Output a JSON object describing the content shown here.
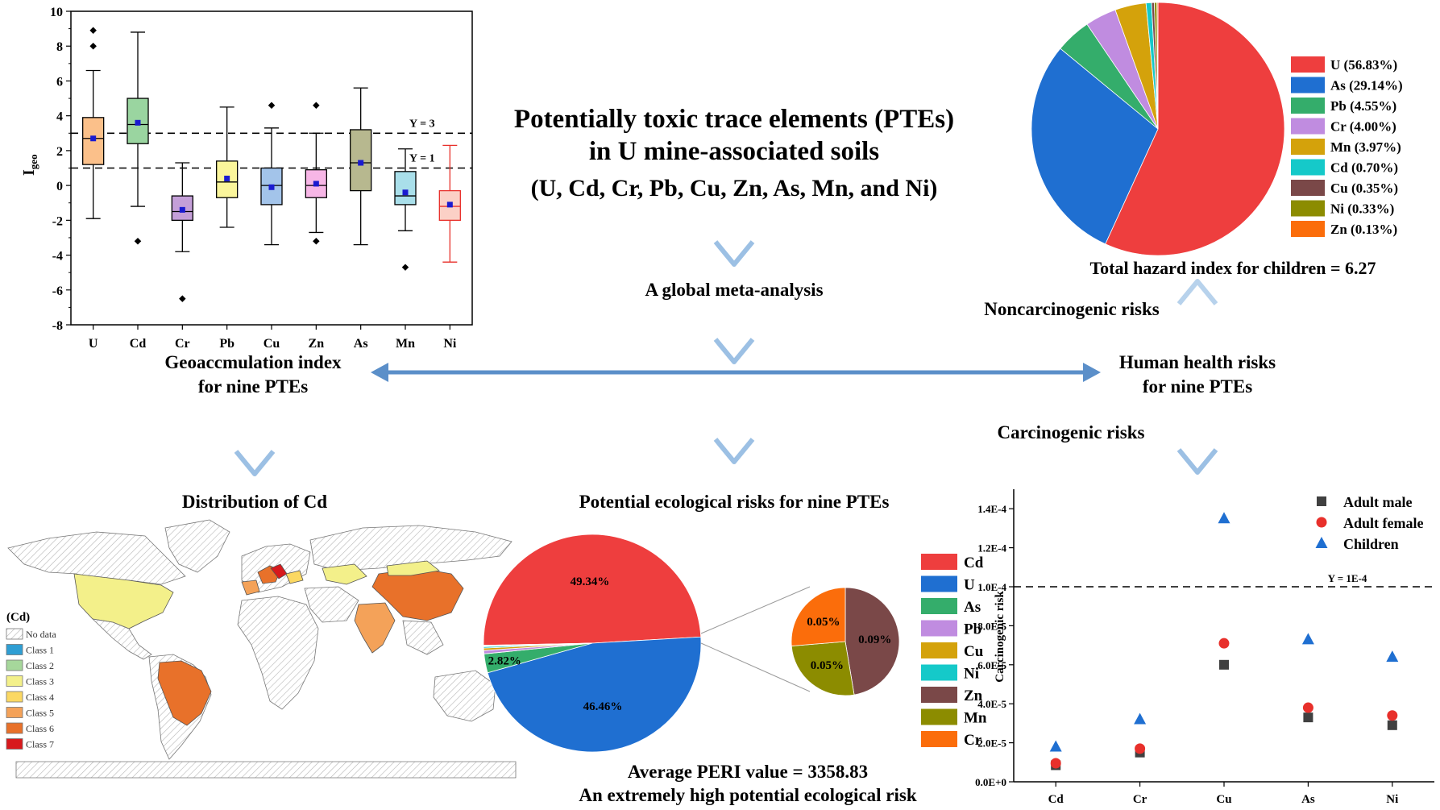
{
  "title": {
    "line1": "Potentially toxic trace elements (PTEs)",
    "line2": "in U mine-associated soils",
    "line3": "(U, Cd, Cr, Pb, Cu, Zn, As, Mn, and Ni)"
  },
  "flow": {
    "meta": "A global meta-analysis",
    "igeo_l1": "Geoaccmulation index",
    "igeo_l2": "for nine PTEs",
    "hhr_l1": "Human health risks",
    "hhr_l2": "for nine PTEs",
    "noncarc": "Noncarcinogenic risks",
    "carc": "Carcinogenic risks",
    "dist": "Distribution of Cd",
    "peri_title": "Potential ecological risks for nine PTEs",
    "peri_l1": "Average PERI value = 3358.83",
    "peri_l2": "An extremely high potential ecological risk",
    "thi": "Total hazard index for children = 6.27"
  },
  "colors": {
    "arrow_light": "#a9c8e6",
    "arrow_dark": "#5b8fc9",
    "map_class5": "#f4a259",
    "map_class6": "#e8712a",
    "map_class7": "#d7191c",
    "map_class3": "#f3f08a"
  },
  "map": {
    "legend_title": "(Cd)",
    "legend": [
      {
        "label": "No data",
        "color": "#ffffff"
      },
      {
        "label": "Class 1",
        "color": "#2f9ed3"
      },
      {
        "label": "Class 2",
        "color": "#a6d79b"
      },
      {
        "label": "Class 3",
        "color": "#f3f08a"
      },
      {
        "label": "Class 4",
        "color": "#fbd862"
      },
      {
        "label": "Class 5",
        "color": "#f4a259"
      },
      {
        "label": "Class 6",
        "color": "#e8712a"
      },
      {
        "label": "Class 7",
        "color": "#d7191c"
      }
    ]
  },
  "chart_data": [
    {
      "type": "box",
      "ylabel": "Igeo",
      "ylim": [
        -8,
        10
      ],
      "yticks": [
        -8,
        -6,
        -4,
        -2,
        0,
        2,
        4,
        6,
        8,
        10
      ],
      "reference_lines": [
        {
          "y": 3,
          "label": "Y = 3"
        },
        {
          "y": 1,
          "label": "Y = 1"
        }
      ],
      "categories": [
        "U",
        "Cd",
        "Cr",
        "Pb",
        "Cu",
        "Zn",
        "As",
        "Mn",
        "Ni"
      ],
      "boxes": [
        {
          "name": "U",
          "min": -1.9,
          "q1": 1.2,
          "median": 2.7,
          "q3": 3.9,
          "max": 6.6,
          "mean": 2.7,
          "outliers": [
            8.0,
            8.9
          ],
          "color": "#fbc08a",
          "stroke": "#000000"
        },
        {
          "name": "Cd",
          "min": -1.2,
          "q1": 2.4,
          "median": 3.5,
          "q3": 5.0,
          "max": 8.8,
          "mean": 3.6,
          "outliers": [
            -3.2
          ],
          "color": "#9ad5a0",
          "stroke": "#000000"
        },
        {
          "name": "Cr",
          "min": -3.8,
          "q1": -2.0,
          "median": -1.5,
          "q3": -0.6,
          "max": 1.3,
          "mean": -1.4,
          "outliers": [
            -6.5
          ],
          "color": "#c49fd8",
          "stroke": "#000000"
        },
        {
          "name": "Pb",
          "min": -2.4,
          "q1": -0.7,
          "median": 0.2,
          "q3": 1.4,
          "max": 4.5,
          "mean": 0.4,
          "outliers": [],
          "color": "#faf59b",
          "stroke": "#000000"
        },
        {
          "name": "Cu",
          "min": -3.4,
          "q1": -1.1,
          "median": 0.0,
          "q3": 1.0,
          "max": 3.3,
          "mean": -0.1,
          "outliers": [
            4.6
          ],
          "color": "#a3c4ea",
          "stroke": "#000000"
        },
        {
          "name": "Zn",
          "min": -2.7,
          "q1": -0.7,
          "median": 0.0,
          "q3": 0.9,
          "max": 3.0,
          "mean": 0.1,
          "outliers": [
            4.6,
            -3.2
          ],
          "color": "#f7b6e6",
          "stroke": "#000000"
        },
        {
          "name": "As",
          "min": -3.4,
          "q1": -0.3,
          "median": 1.3,
          "q3": 3.2,
          "max": 5.6,
          "mean": 1.3,
          "outliers": [],
          "color": "#b7b88f",
          "stroke": "#000000"
        },
        {
          "name": "Mn",
          "min": -2.6,
          "q1": -1.1,
          "median": -0.6,
          "q3": 0.8,
          "max": 2.1,
          "mean": -0.4,
          "outliers": [
            -4.7
          ],
          "color": "#a9dfea",
          "stroke": "#000000"
        },
        {
          "name": "Ni",
          "min": -4.4,
          "q1": -2.0,
          "median": -1.2,
          "q3": -0.3,
          "max": 2.3,
          "mean": -1.1,
          "outliers": [],
          "color": "#fbd0c6",
          "stroke": "#e8302b"
        }
      ]
    },
    {
      "type": "pie",
      "slices": [
        {
          "label": "U",
          "display": "U  (56.83%)",
          "value": 56.83,
          "color": "#ee3e3e"
        },
        {
          "label": "As",
          "display": "As (29.14%)",
          "value": 29.14,
          "color": "#1f6fd1"
        },
        {
          "label": "Pb",
          "display": "Pb (4.55%)",
          "value": 4.55,
          "color": "#34ad6b"
        },
        {
          "label": "Cr",
          "display": "Cr (4.00%)",
          "value": 4.0,
          "color": "#c08ce0"
        },
        {
          "label": "Mn",
          "display": "Mn (3.97%)",
          "value": 3.97,
          "color": "#d4a20b"
        },
        {
          "label": "Cd",
          "display": "Cd (0.70%)",
          "value": 0.7,
          "color": "#15c9c9"
        },
        {
          "label": "Cu",
          "display": "Cu (0.35%)",
          "value": 0.35,
          "color": "#7a4848"
        },
        {
          "label": "Ni",
          "display": "Ni  (0.33%)",
          "value": 0.33,
          "color": "#8c8c00"
        },
        {
          "label": "Zn",
          "display": "Zn (0.13%)",
          "value": 0.13,
          "color": "#fb6d0b"
        }
      ]
    },
    {
      "type": "pie",
      "slices": [
        {
          "label": "Cd",
          "value": 49.34,
          "text": "49.34%",
          "color": "#ee3e3e"
        },
        {
          "label": "U",
          "value": 46.46,
          "text": "46.46%",
          "color": "#1f6fd1"
        },
        {
          "label": "As",
          "value": 2.82,
          "text": "2.82%",
          "color": "#34ad6b"
        },
        {
          "label": "Pb",
          "value": 0.5,
          "text": "",
          "color": "#c08ce0"
        },
        {
          "label": "Cu",
          "value": 0.35,
          "text": "",
          "color": "#d4a20b"
        },
        {
          "label": "Ni",
          "value": 0.21,
          "text": "",
          "color": "#15c9c9"
        },
        {
          "label": "Zn",
          "value": 0.09,
          "text": "0.09%",
          "color": "#7a4848"
        },
        {
          "label": "Mn",
          "value": 0.05,
          "text": "0.05%",
          "color": "#8c8c00"
        },
        {
          "label": "Cr",
          "value": 0.05,
          "text": "0.05%",
          "color": "#fb6d0b"
        }
      ],
      "legend": [
        "Cd",
        "U",
        "As",
        "Pb",
        "Cu",
        "Ni",
        "Zn",
        "Mn",
        "Cr"
      ],
      "detail_slices": [
        {
          "label": "Zn",
          "value": 0.09,
          "text": "0.09%",
          "color": "#7a4848"
        },
        {
          "label": "Mn",
          "value": 0.05,
          "text": "0.05%",
          "color": "#8c8c00"
        },
        {
          "label": "Cr",
          "value": 0.05,
          "text": "0.05%",
          "color": "#fb6d0b"
        }
      ]
    },
    {
      "type": "scatter",
      "ylabel": "Carcinogenic risk",
      "ylim": [
        0,
        0.00015
      ],
      "yticks": [
        {
          "v": 0,
          "label": "0.0E+0"
        },
        {
          "v": 2e-05,
          "label": "2.0E-5"
        },
        {
          "v": 4e-05,
          "label": "4.0E-5"
        },
        {
          "v": 6e-05,
          "label": "6.0E-5"
        },
        {
          "v": 8e-05,
          "label": "8.0E-5"
        },
        {
          "v": 0.0001,
          "label": "1.0E-4"
        },
        {
          "v": 0.00012,
          "label": "1.2E-4"
        },
        {
          "v": 0.00014,
          "label": "1.4E-4"
        }
      ],
      "categories": [
        "Cd",
        "Cr",
        "Cu",
        "As",
        "Ni"
      ],
      "reference_line": {
        "y": 0.0001,
        "label": "Y = 1E-4"
      },
      "series": [
        {
          "name": "Adult male",
          "marker": "square",
          "color": "#404040",
          "values": [
            8.5e-06,
            1.5e-05,
            6e-05,
            3.3e-05,
            2.9e-05
          ]
        },
        {
          "name": "Adult female",
          "marker": "circle",
          "color": "#e8302b",
          "values": [
            9.5e-06,
            1.7e-05,
            7.1e-05,
            3.8e-05,
            3.4e-05
          ]
        },
        {
          "name": "Children",
          "marker": "triangle",
          "color": "#1f6fd1",
          "values": [
            1.8e-05,
            3.2e-05,
            0.000135,
            7.3e-05,
            6.4e-05
          ]
        }
      ]
    }
  ]
}
